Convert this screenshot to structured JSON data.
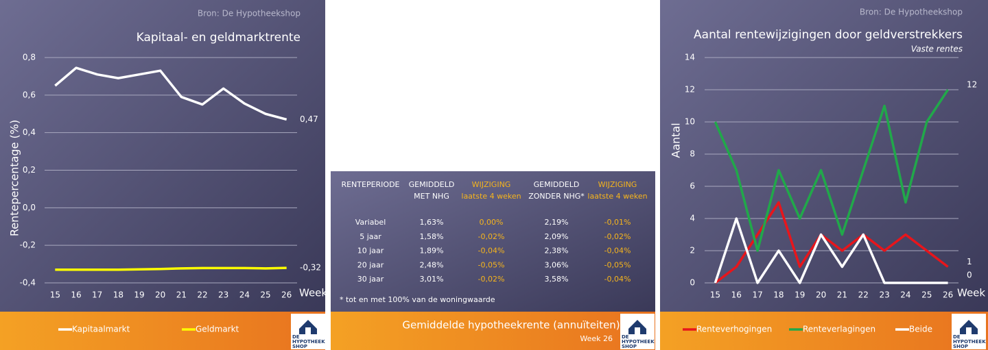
{
  "source": "Bron: De Hypotheekshop",
  "logo": [
    "DE",
    "HYPOTHEEK",
    "SHOP"
  ],
  "chart_data": [
    {
      "type": "line",
      "title": "Kapitaal- en geldmarktrente",
      "y_label": "Rentepercentage (%)",
      "x_label": "Week",
      "categories": [
        "15",
        "16",
        "17",
        "18",
        "19",
        "20",
        "21",
        "22",
        "23",
        "24",
        "25",
        "26"
      ],
      "ylim": [
        -0.4,
        0.8
      ],
      "yticks": [
        {
          "value": -0.4,
          "label": "-0,4"
        },
        {
          "value": -0.2,
          "label": "-0,2"
        },
        {
          "value": 0,
          "label": "0,0"
        },
        {
          "value": 0.2,
          "label": "0,2"
        },
        {
          "value": 0.4,
          "label": "0,4"
        },
        {
          "value": 0.6,
          "label": "0,6"
        },
        {
          "value": 0.8,
          "label": "0,8"
        }
      ],
      "grid": true,
      "legend": "bottom",
      "series": [
        {
          "name": "Kapitaalmarkt",
          "color": "#ffffff",
          "values": [
            0.65,
            0.745,
            0.71,
            0.69,
            0.71,
            0.73,
            0.59,
            0.55,
            0.635,
            0.555,
            0.5,
            0.47
          ],
          "value_labels": [
            null,
            null,
            null,
            null,
            null,
            null,
            null,
            null,
            null,
            null,
            null,
            "0,47"
          ]
        },
        {
          "name": "Geldmarkt",
          "color": "#ffff00",
          "values": [
            -0.33,
            -0.33,
            -0.33,
            -0.33,
            -0.328,
            -0.326,
            -0.323,
            -0.321,
            -0.321,
            -0.321,
            -0.323,
            -0.32
          ],
          "value_labels": [
            null,
            null,
            null,
            null,
            null,
            null,
            null,
            null,
            null,
            null,
            null,
            "-0,32"
          ]
        }
      ]
    },
    {
      "type": "line",
      "title": "Aantal rentewijzigingen door geldverstrekkers",
      "subtitle": "Vaste rentes",
      "y_label": "Aantal",
      "x_label": "Week",
      "categories": [
        "15",
        "16",
        "17",
        "18",
        "19",
        "20",
        "21",
        "22",
        "23",
        "24",
        "25",
        "26"
      ],
      "ylim": [
        0,
        14
      ],
      "yticks": [
        0,
        2,
        4,
        6,
        8,
        10,
        12,
        14
      ],
      "grid": true,
      "legend": "bottom",
      "end_labels": true,
      "series": [
        {
          "name": "Renteverhogingen",
          "color": "#e8151b",
          "values": [
            0,
            1,
            3,
            5,
            1,
            3,
            2,
            3,
            2,
            3,
            2,
            1
          ]
        },
        {
          "name": "Renteverlagingen",
          "color": "#21a84a",
          "values": [
            10,
            7,
            2,
            7,
            4,
            7,
            3,
            7,
            11,
            5,
            10,
            12
          ]
        },
        {
          "name": "Beide",
          "color": "#ffffff",
          "values": [
            0,
            4,
            0,
            2,
            0,
            3,
            1,
            3,
            0,
            0,
            0,
            0
          ]
        }
      ]
    }
  ],
  "table": {
    "title": "Gemiddelde hypotheekrente (annuïteiten)",
    "week": "Week 26",
    "headers": [
      [
        "RENTEPERIODE"
      ],
      [
        "GEMIDDELD",
        "MET NHG"
      ],
      [
        "WIJZIGING",
        "laatste 4 weken"
      ],
      [
        "GEMIDDELD",
        "ZONDER NHG*"
      ],
      [
        "WIJZIGING",
        "laatste 4 weken"
      ]
    ],
    "rows": [
      [
        "Variabel",
        "1,63%",
        "0,00%",
        "2,19%",
        "-0,01%"
      ],
      [
        "5 jaar",
        "1,58%",
        "-0,02%",
        "2,09%",
        "-0,02%"
      ],
      [
        "10 jaar",
        "1,89%",
        "-0,04%",
        "2,38%",
        "-0,04%"
      ],
      [
        "20 jaar",
        "2,48%",
        "-0,05%",
        "3,06%",
        "-0,05%"
      ],
      [
        "30 jaar",
        "3,01%",
        "-0,02%",
        "3,58%",
        "-0,04%"
      ]
    ],
    "footnote": "* tot en met 100% van de woningwaarde"
  }
}
